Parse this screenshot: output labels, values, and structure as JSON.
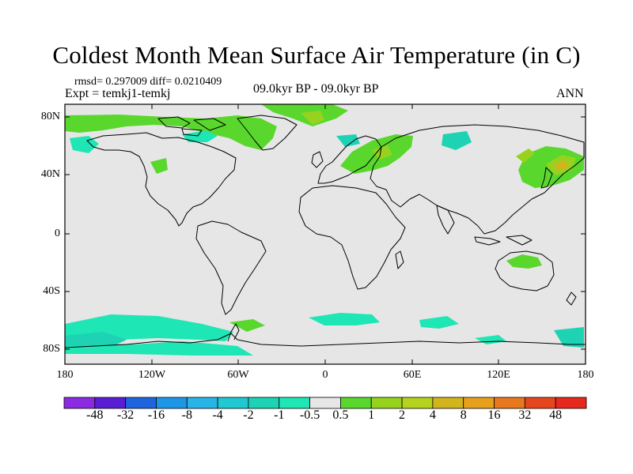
{
  "title": "Coldest Month Mean Surface Air Temperature (in C)",
  "subtitle": {
    "stats": "rmsd= 0.297009 diff= 0.0210409",
    "experiment": "Expt = temkj1-temkj",
    "period": "09.0kyr BP - 09.0kyr BP",
    "season": "ANN"
  },
  "map": {
    "projection": "cylindrical equidistant",
    "lat_labels": [
      "80N",
      "40N",
      "0",
      "40S",
      "80S"
    ],
    "lon_labels": [
      "180",
      "120W",
      "60W",
      "0",
      "60E",
      "120E",
      "180"
    ],
    "ocean_color": "#e6e6e6",
    "coastline_color": "#000000"
  },
  "colorbar": {
    "labels": [
      "-48",
      "-32",
      "-16",
      "-8",
      "-4",
      "-2",
      "-1",
      "-0.5",
      "0.5",
      "1",
      "2",
      "4",
      "8",
      "16",
      "32",
      "48"
    ],
    "colors": [
      "#8a2be2",
      "#5a1ed2",
      "#1e64dc",
      "#1e96e6",
      "#28b4e6",
      "#20c8d2",
      "#1ed2b4",
      "#1ee6b4",
      "#e6e6e6",
      "#5ad72d",
      "#96d21e",
      "#b4d21e",
      "#d2b41e",
      "#e6a01e",
      "#e6781e",
      "#e6461e",
      "#e6281e"
    ]
  },
  "anomaly_regions": [
    {
      "name": "arctic-canada",
      "level": "1"
    },
    {
      "name": "alaska",
      "level": "-0.5"
    },
    {
      "name": "western-russia",
      "level": "1"
    },
    {
      "name": "north-atlantic",
      "level": "1"
    },
    {
      "name": "northeast-asia",
      "level": "2"
    },
    {
      "name": "australia",
      "level": "1"
    },
    {
      "name": "southern-ocean",
      "level": "-0.5"
    }
  ]
}
